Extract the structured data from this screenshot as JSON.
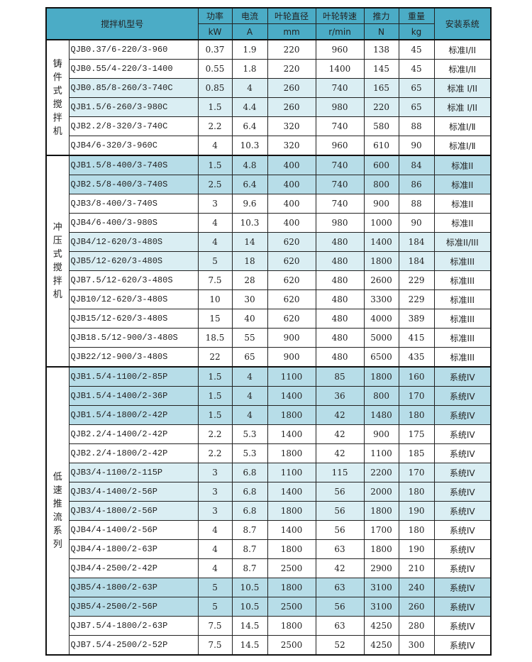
{
  "colors": {
    "header": "#4bacc6",
    "medium": "#b7dde8",
    "light": "#daeef3"
  },
  "header": {
    "model": "搅拌机型号",
    "power": "功率",
    "power_unit": "kW",
    "current": "电流",
    "current_unit": "A",
    "diameter": "叶轮直径",
    "diameter_unit": "mm",
    "speed": "叶轮转速",
    "speed_unit": "r/min",
    "thrust": "推力",
    "thrust_unit": "N",
    "weight": "重量",
    "weight_unit": "kg",
    "system": "安装系统"
  },
  "groups": [
    {
      "label": "铸件式搅拌机",
      "rows": [
        {
          "shade": "none",
          "cells": [
            "QJB0.37/6-220/3-960",
            "0.37",
            "1.9",
            "220",
            "960",
            "138",
            "45",
            "标准Ⅰ/II"
          ]
        },
        {
          "shade": "none",
          "cells": [
            "QJB0.55/4-220/3-1400",
            "0.55",
            "1.8",
            "220",
            "1400",
            "145",
            "45",
            "标准Ⅰ/II"
          ]
        },
        {
          "shade": "light",
          "cells": [
            "QJB0.85/8-260/3-740C",
            "0.85",
            "4",
            "260",
            "740",
            "165",
            "65",
            "标准 I/II"
          ]
        },
        {
          "shade": "light",
          "cells": [
            "QJB1.5/6-260/3-980C",
            "1.5",
            "4.4",
            "260",
            "980",
            "220",
            "65",
            "标准 I/II"
          ]
        },
        {
          "shade": "none",
          "cells": [
            "QJB2.2/8-320/3-740C",
            "2.2",
            "6.4",
            "320",
            "740",
            "580",
            "88",
            "标准I/Ⅱ"
          ]
        },
        {
          "shade": "none",
          "cells": [
            "QJB4/6-320/3-960C",
            "4",
            "10.3",
            "320",
            "960",
            "610",
            "90",
            "标准I/Ⅱ"
          ]
        }
      ]
    },
    {
      "label": "冲压式搅拌机",
      "rows": [
        {
          "shade": "med",
          "cells": [
            "QJB1.5/8-400/3-740S",
            "1.5",
            "4.8",
            "400",
            "740",
            "600",
            "84",
            "标准II"
          ]
        },
        {
          "shade": "med",
          "cells": [
            "QJB2.5/8-400/3-740S",
            "2.5",
            "6.4",
            "400",
            "740",
            "800",
            "86",
            "标准II"
          ]
        },
        {
          "shade": "none",
          "cells": [
            "QJB3/8-400/3-740S",
            "3",
            "9.6",
            "400",
            "740",
            "900",
            "88",
            "标准II"
          ]
        },
        {
          "shade": "none",
          "cells": [
            "QJB4/6-400/3-980S",
            "4",
            "10.3",
            "400",
            "980",
            "1000",
            "90",
            "标准II"
          ]
        },
        {
          "shade": "light",
          "cells": [
            "QJB4/12-620/3-480S",
            "4",
            "14",
            "620",
            "480",
            "1400",
            "184",
            "标准II/III"
          ]
        },
        {
          "shade": "light",
          "cells": [
            "QJB5/12-620/3-480S",
            "5",
            "18",
            "620",
            "480",
            "1800",
            "184",
            "标准III"
          ]
        },
        {
          "shade": "none",
          "cells": [
            "QJB7.5/12-620/3-480S",
            "7.5",
            "28",
            "620",
            "480",
            "2600",
            "229",
            "标准III"
          ]
        },
        {
          "shade": "none",
          "cells": [
            "QJB10/12-620/3-480S",
            "10",
            "30",
            "620",
            "480",
            "3300",
            "229",
            "标准III"
          ]
        },
        {
          "shade": "none",
          "cells": [
            "QJB15/12-620/3-480S",
            "15",
            "40",
            "620",
            "480",
            "4000",
            "389",
            "标准III"
          ]
        },
        {
          "shade": "none",
          "cells": [
            "QJB18.5/12-900/3-480S",
            "18.5",
            "55",
            "900",
            "480",
            "5000",
            "415",
            "标准III"
          ]
        },
        {
          "shade": "none",
          "cells": [
            "QJB22/12-900/3-480S",
            "22",
            "65",
            "900",
            "480",
            "6500",
            "435",
            "标准III"
          ]
        }
      ]
    },
    {
      "label": "低速推流系列",
      "rows": [
        {
          "shade": "med",
          "cells": [
            "QJB1.5/4-1100/2-85P",
            "1.5",
            "4",
            "1100",
            "85",
            "1800",
            "160",
            "系统IV"
          ]
        },
        {
          "shade": "med",
          "cells": [
            "QJB1.5/4-1400/2-36P",
            "1.5",
            "4",
            "1400",
            "36",
            "800",
            "170",
            "系统IV"
          ]
        },
        {
          "shade": "med",
          "cells": [
            "QJB1.5/4-1800/2-42P",
            "1.5",
            "4",
            "1800",
            "42",
            "1480",
            "180",
            "系统IV"
          ]
        },
        {
          "shade": "none",
          "cells": [
            "QJB2.2/4-1400/2-42P",
            "2.2",
            "5.3",
            "1400",
            "42",
            "900",
            "175",
            "系统IV"
          ]
        },
        {
          "shade": "none",
          "cells": [
            "QJB2.2/4-1800/2-42P",
            "2.2",
            "5.3",
            "1800",
            "42",
            "1100",
            "185",
            "系统IV"
          ]
        },
        {
          "shade": "light",
          "cells": [
            "QJB3/4-1100/2-115P",
            "3",
            "6.8",
            "1100",
            "115",
            "2200",
            "170",
            "系统IV"
          ]
        },
        {
          "shade": "light",
          "cells": [
            "QJB3/4-1400/2-56P",
            "3",
            "6.8",
            "1400",
            "56",
            "2000",
            "180",
            "系统IV"
          ]
        },
        {
          "shade": "light",
          "cells": [
            "QJB3/4-1800/2-56P",
            "3",
            "6.8",
            "1800",
            "56",
            "1800",
            "190",
            "系统IV"
          ]
        },
        {
          "shade": "none",
          "cells": [
            "QJB4/4-1400/2-56P",
            "4",
            "8.7",
            "1400",
            "56",
            "1700",
            "180",
            "系统IV"
          ]
        },
        {
          "shade": "none",
          "cells": [
            "QJB4/4-1800/2-63P",
            "4",
            "8.7",
            "1800",
            "63",
            "1800",
            "190",
            "系统IV"
          ]
        },
        {
          "shade": "none",
          "cells": [
            "QJB4/4-2500/2-42P",
            "4",
            "8.7",
            "2500",
            "42",
            "2900",
            "210",
            "系统IV"
          ]
        },
        {
          "shade": "med",
          "cells": [
            "QJB5/4-1800/2-63P",
            "5",
            "10.5",
            "1800",
            "63",
            "3100",
            "240",
            "系统IV"
          ]
        },
        {
          "shade": "med",
          "cells": [
            "QJB5/4-2500/2-56P",
            "5",
            "10.5",
            "2500",
            "56",
            "3100",
            "260",
            "系统IV"
          ]
        },
        {
          "shade": "none",
          "cells": [
            "QJB7.5/4-1800/2-63P",
            "7.5",
            "14.5",
            "1800",
            "63",
            "4250",
            "280",
            "系统IV"
          ]
        },
        {
          "shade": "none",
          "cells": [
            "QJB7.5/4-2500/2-52P",
            "7.5",
            "14.5",
            "2500",
            "52",
            "4250",
            "300",
            "系统IV"
          ]
        }
      ]
    }
  ]
}
